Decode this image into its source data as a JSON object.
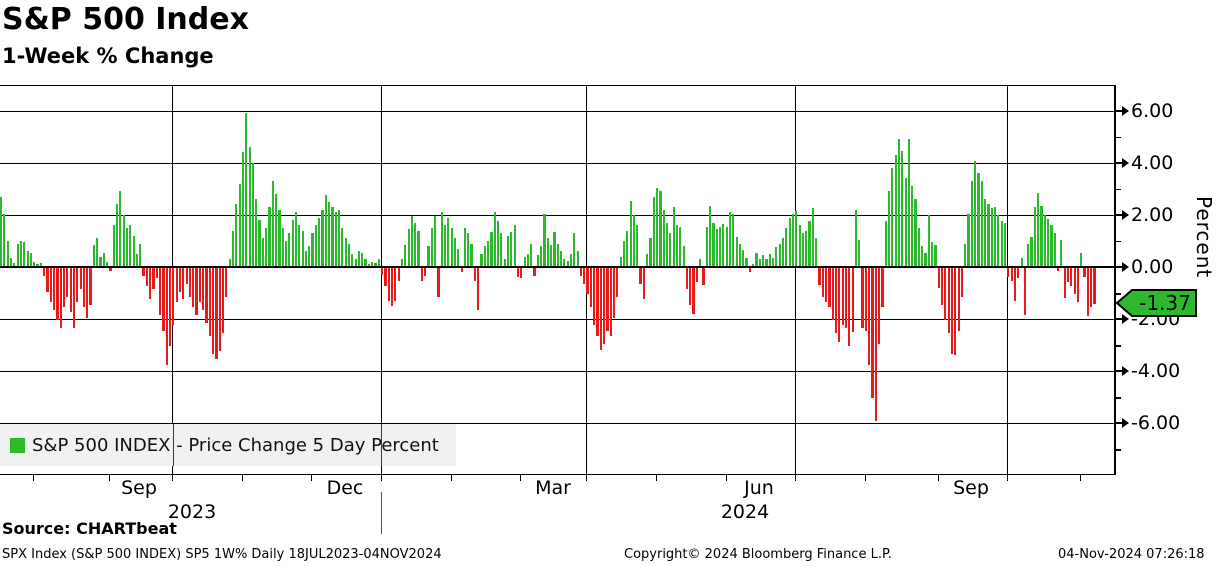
{
  "header": {
    "title": "S&P 500 Index",
    "subtitle": "1-Week % Change"
  },
  "legend": {
    "label": "S&P 500 INDEX - Price Change 5 Day Percent",
    "swatch_color": "#2db92d"
  },
  "last_price_tag": {
    "text": "-1.37",
    "value": -1.37,
    "bg_color": "#2db92d"
  },
  "footer": {
    "source": "Source: CHARTbeat",
    "info": "SPX Index (S&P 500 INDEX) SP5 1W%  Daily 18JUL2023-04NOV2024",
    "copyright": "Copyright© 2024 Bloomberg Finance L.P.",
    "timestamp": "04-Nov-2024 07:26:18"
  },
  "chart_data": {
    "type": "bar",
    "title": "S&P 500 Index 1-Week % Change",
    "series_name": "S&P 500 INDEX - Price Change 5 Day Percent",
    "frequency": "Daily",
    "period": "18JUL2023-04NOV2024",
    "ylabel": "Percent",
    "ylim": [
      -7.94,
      6.98
    ],
    "grid": true,
    "legend_position": "bottom-left",
    "bar_color_positive": "#2db92d",
    "bar_color_negative": "#e51b1b",
    "y_major_ticks": [
      {
        "value": 6,
        "label": "6.00"
      },
      {
        "value": 4,
        "label": "4.00"
      },
      {
        "value": 2,
        "label": "2.00"
      },
      {
        "value": 0,
        "label": "0.00"
      },
      {
        "value": -2,
        "label": "-2.00"
      },
      {
        "value": -4,
        "label": "-4.00"
      },
      {
        "value": -6,
        "label": "-6.00"
      }
    ],
    "y_minor_ticks": [
      5,
      3,
      1,
      -1,
      -3,
      -5,
      -7
    ],
    "quarter_gridline_days": [
      52,
      115,
      177,
      240,
      304
    ],
    "month_tick_days": [
      10,
      33,
      73,
      94,
      136,
      157,
      198,
      219,
      261,
      283,
      326
    ],
    "month_labels": [
      {
        "label": "Sep",
        "day": 42
      },
      {
        "label": "Dec",
        "day": 104
      },
      {
        "label": "Mar",
        "day": 167
      },
      {
        "label": "Jun",
        "day": 229
      },
      {
        "label": "Sep",
        "day": 293
      }
    ],
    "year_labels": [
      {
        "label": "2023",
        "day": 58
      },
      {
        "label": "2024",
        "day": 225
      }
    ],
    "year_divider_day": 115,
    "last_value": -1.37,
    "values": [
      2.7,
      2.05,
      1.0,
      0.35,
      0.15,
      0.9,
      1.0,
      0.95,
      0.6,
      0.55,
      0.2,
      0.1,
      0.15,
      -0.3,
      -0.9,
      -1.3,
      -1.6,
      -2.0,
      -2.3,
      -1.5,
      -1.1,
      -1.7,
      -2.3,
      -1.3,
      -0.8,
      -1.5,
      -1.9,
      -1.4,
      0.85,
      1.1,
      0.4,
      0.55,
      0.2,
      -0.1,
      1.6,
      2.4,
      2.9,
      2.0,
      1.5,
      1.6,
      1.2,
      0.5,
      0.9,
      -0.3,
      -0.7,
      -1.2,
      -0.8,
      -0.4,
      -1.8,
      -2.4,
      -3.7,
      -3.0,
      -2.2,
      -1.3,
      -0.9,
      -1.2,
      -0.6,
      -1.1,
      -1.5,
      -1.8,
      -1.3,
      -1.6,
      -2.1,
      -2.6,
      -3.3,
      -3.5,
      -3.2,
      -2.5,
      -1.1,
      0.3,
      1.4,
      2.4,
      3.2,
      4.4,
      5.9,
      4.6,
      4.0,
      2.6,
      1.8,
      1.1,
      1.5,
      2.3,
      3.3,
      2.8,
      2.2,
      1.5,
      1.0,
      1.3,
      1.8,
      2.1,
      1.6,
      1.4,
      0.6,
      0.8,
      1.3,
      1.6,
      1.9,
      2.2,
      2.75,
      2.5,
      2.3,
      2.1,
      2.2,
      1.5,
      1.1,
      0.9,
      0.5,
      0.3,
      0.6,
      0.55,
      0.3,
      0.1,
      0.2,
      0.15,
      0.3,
      -0.25,
      -0.7,
      -1.25,
      -1.45,
      -1.25,
      -0.5,
      0.3,
      0.85,
      1.45,
      1.95,
      1.7,
      1.4,
      -0.5,
      -0.3,
      0.8,
      1.5,
      1.95,
      -1.1,
      2.1,
      1.6,
      1.9,
      1.5,
      1.1,
      0.7,
      -0.15,
      1.5,
      1.3,
      0.9,
      -0.5,
      -1.6,
      0.5,
      0.8,
      1.0,
      1.35,
      2.1,
      1.75,
      1.3,
      0.3,
      1.2,
      1.35,
      1.6,
      -0.35,
      -0.4,
      0.4,
      0.5,
      0.9,
      -0.3,
      0.45,
      0.8,
      2.05,
      1.1,
      0.85,
      1.35,
      0.9,
      0.6,
      0.3,
      0.25,
      0.5,
      1.3,
      0.6,
      -0.3,
      -0.6,
      -1.0,
      -1.5,
      -2.2,
      -2.6,
      -3.15,
      -2.9,
      -2.4,
      -2.6,
      -1.9,
      -1.1,
      0.4,
      1.0,
      1.4,
      2.55,
      2.0,
      1.6,
      -0.6,
      -1.2,
      0.5,
      1.1,
      2.7,
      3.05,
      2.9,
      2.2,
      1.7,
      1.3,
      2.3,
      1.6,
      1.55,
      0.8,
      -0.8,
      -1.4,
      -1.75,
      -0.55,
      0.3,
      -0.65,
      1.55,
      2.35,
      1.7,
      1.45,
      1.55,
      1.65,
      1.55,
      2.1,
      2.05,
      1.15,
      0.9,
      0.65,
      0.35,
      -0.15,
      0.1,
      0.55,
      0.3,
      0.45,
      0.3,
      0.5,
      0.35,
      0.75,
      0.9,
      1.1,
      1.5,
      1.9,
      2.05,
      2.15,
      1.6,
      1.3,
      1.4,
      1.75,
      2.25,
      1.1,
      -0.65,
      -1.1,
      -1.3,
      -1.5,
      -2.0,
      -2.5,
      -2.85,
      -2.2,
      -2.3,
      -3.0,
      -2.45,
      2.2,
      1.05,
      -2.3,
      -2.4,
      -3.7,
      -5.0,
      -5.85,
      -2.9,
      -1.5,
      1.75,
      2.9,
      3.8,
      4.3,
      4.9,
      4.45,
      3.4,
      4.9,
      3.1,
      2.6,
      1.5,
      0.8,
      0.55,
      2.0,
      0.95,
      0.85,
      -0.75,
      -1.4,
      -2.0,
      -2.5,
      -3.3,
      -3.35,
      -2.4,
      -1.1,
      0.9,
      2.05,
      3.3,
      4.05,
      3.6,
      3.3,
      2.6,
      2.4,
      2.25,
      2.3,
      2.0,
      1.75,
      1.7,
      -0.35,
      -0.5,
      -1.25,
      -0.4,
      0.35,
      -1.8,
      0.9,
      1.15,
      2.3,
      2.85,
      2.35,
      2.0,
      1.85,
      1.6,
      1.3,
      -0.1,
      1.05,
      -1.15,
      -0.55,
      -0.7,
      -1.0,
      -1.3,
      0.55,
      -0.35,
      -1.85,
      -1.5,
      -1.37
    ]
  }
}
